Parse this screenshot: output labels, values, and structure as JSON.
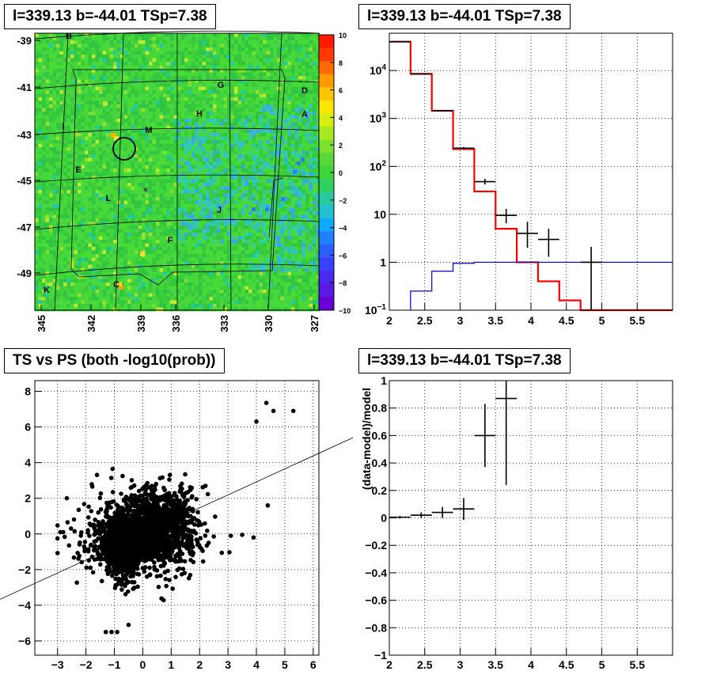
{
  "panels": {
    "skymap": {
      "title": "l=339.13 b=-44.01 TSp=7.38",
      "y_ticks": [
        "-39",
        "-41",
        "-43",
        "-45",
        "-47",
        "-49"
      ],
      "x_ticks": [
        "345",
        "342",
        "339",
        "336",
        "333",
        "330",
        "327"
      ],
      "colorbar_ticks": [
        "10",
        "8",
        "6",
        "4",
        "2",
        "0",
        "−2",
        "−4",
        "−6",
        "−8",
        "−10"
      ],
      "source_labels": [
        {
          "text": "B",
          "x": 87,
          "y": 49
        },
        {
          "text": "G",
          "x": 279,
          "y": 111
        },
        {
          "text": "D",
          "x": 385,
          "y": 118
        },
        {
          "text": "H",
          "x": 252,
          "y": 147
        },
        {
          "text": "A",
          "x": 385,
          "y": 148
        },
        {
          "text": "I",
          "x": 80,
          "y": 163
        },
        {
          "text": "M",
          "x": 188,
          "y": 168
        },
        {
          "text": "E",
          "x": 99,
          "y": 218
        },
        {
          "text": "L",
          "x": 137,
          "y": 254
        },
        {
          "text": "J",
          "x": 277,
          "y": 269
        },
        {
          "text": "F",
          "x": 215,
          "y": 307
        },
        {
          "text": "C",
          "x": 147,
          "y": 363
        },
        {
          "text": "K",
          "x": 59,
          "y": 370
        }
      ]
    },
    "spectrum": {
      "title": "l=339.13 b=-44.01 TSp=7.38",
      "x_ticks": [
        "2",
        "2.5",
        "3",
        "3.5",
        "4",
        "4.5",
        "5",
        "5.5"
      ],
      "y_ticks": [
        "10^-1",
        "1",
        "10",
        "10^2",
        "10^3",
        "10^4"
      ]
    },
    "scatter": {
      "title": "TS vs PS (both -log10(prob))",
      "x_ticks": [
        "−3",
        "−2",
        "−1",
        "0",
        "1",
        "2",
        "3",
        "4",
        "5",
        "6"
      ],
      "y_ticks": [
        "−6",
        "−4",
        "−2",
        "0",
        "2",
        "4",
        "6",
        "8"
      ]
    },
    "residual": {
      "title": "l=339.13 b=-44.01 TSp=7.38",
      "ylabel": "(data-model)/model",
      "x_ticks": [
        "2",
        "2.5",
        "3",
        "3.5",
        "4",
        "4.5",
        "5",
        "5.5"
      ],
      "y_ticks": [
        "−1",
        "−0.8",
        "−0.6",
        "−0.4",
        "−0.2",
        "0",
        "0.2",
        "0.4",
        "0.6",
        "0.8",
        "1"
      ]
    }
  },
  "chart_data": [
    {
      "type": "heatmap",
      "title": "l=339.13 b=-44.01 TSp=7.38",
      "xlabel": "",
      "ylabel": "",
      "xlim": [
        345,
        327
      ],
      "ylim": [
        -50.5,
        -38.8
      ],
      "zlim": [
        -10,
        10
      ],
      "marker_circle": {
        "l": 339.9,
        "b": -43.7
      },
      "colors": {
        "background": "#3ad53a",
        "high": "#ff3a00",
        "low": "#2a7dff"
      }
    },
    {
      "type": "line",
      "title": "l=339.13 b=-44.01 TSp=7.38",
      "xlabel": "",
      "ylabel": "",
      "xlim": [
        2,
        6
      ],
      "ylim": [
        0.1,
        60000
      ],
      "yscale": "log",
      "grid": true,
      "series": [
        {
          "name": "",
          "color": "#ff0000",
          "step": true,
          "edges": [
            2.0,
            2.3,
            2.6,
            2.9,
            3.2,
            3.5,
            3.8,
            4.1,
            4.4,
            4.7,
            5.0,
            6.0
          ],
          "values": [
            40000,
            8500,
            1450,
            230,
            30,
            5,
            1,
            0.4,
            0.16,
            0.1,
            0.1
          ]
        },
        {
          "name": "",
          "color": "#0000cc",
          "step": true,
          "edges": [
            2.3,
            2.6,
            2.9,
            3.2,
            6.0
          ],
          "values": [
            0.25,
            0.65,
            0.95,
            1.0
          ]
        },
        {
          "name": "",
          "color": "#000000",
          "errorbars": true,
          "points": [
            {
              "x": 2.15,
              "y": 40000,
              "xerr": 0.15,
              "ylo": 39000,
              "yhi": 41000
            },
            {
              "x": 2.45,
              "y": 8500,
              "xerr": 0.15,
              "ylo": 8300,
              "yhi": 8700
            },
            {
              "x": 2.75,
              "y": 1450,
              "xerr": 0.15,
              "ylo": 1400,
              "yhi": 1500
            },
            {
              "x": 3.05,
              "y": 240,
              "xerr": 0.15,
              "ylo": 225,
              "yhi": 255
            },
            {
              "x": 3.35,
              "y": 48,
              "xerr": 0.15,
              "ylo": 42,
              "yhi": 55
            },
            {
              "x": 3.65,
              "y": 9.5,
              "xerr": 0.15,
              "ylo": 6.5,
              "yhi": 13
            },
            {
              "x": 3.95,
              "y": 4,
              "xerr": 0.15,
              "ylo": 2,
              "yhi": 7
            },
            {
              "x": 4.25,
              "y": 3,
              "xerr": 0.15,
              "ylo": 1.3,
              "yhi": 5
            },
            {
              "x": 4.85,
              "y": 1,
              "xerr": 0.15,
              "ylo": 0.1,
              "yhi": 2.1
            }
          ]
        }
      ]
    },
    {
      "type": "scatter",
      "title": "TS vs PS (both -log10(prob))",
      "xlabel": "",
      "ylabel": "",
      "xlim": [
        -3.8,
        6.2
      ],
      "ylim": [
        -6.8,
        8.6
      ],
      "grid": true,
      "reference_line": {
        "slope": 0.73,
        "intercept": 0
      },
      "points": [
        [
          4.35,
          7.35
        ],
        [
          4.6,
          6.9
        ],
        [
          5.3,
          6.9
        ],
        [
          4.0,
          6.3
        ],
        [
          4.4,
          1.6
        ],
        [
          3.5,
          -0.05
        ],
        [
          3.9,
          -0.2
        ],
        [
          3.1,
          -0.1
        ],
        [
          2.2,
          -0.1
        ],
        [
          -2.9,
          0.1
        ],
        [
          -2.8,
          0.1
        ],
        [
          -2.4,
          0.15
        ],
        [
          -1.3,
          -5.5
        ],
        [
          -0.9,
          -5.5
        ],
        [
          -1.1,
          -5.5
        ],
        [
          -0.5,
          -5.1
        ]
      ],
      "cloud": {
        "n": 2600,
        "center": [
          0,
          0
        ]
      }
    },
    {
      "type": "scatter",
      "title": "l=339.13 b=-44.01 TSp=7.38",
      "xlabel": "",
      "ylabel": "(data-model)/model",
      "xlim": [
        2,
        6
      ],
      "ylim": [
        -1,
        1
      ],
      "grid": true,
      "points": [
        {
          "x": 2.15,
          "y": 0.005,
          "xerr": 0.15,
          "yerr": 0.01
        },
        {
          "x": 2.45,
          "y": 0.02,
          "xerr": 0.15,
          "yerr": 0.02
        },
        {
          "x": 2.75,
          "y": 0.04,
          "xerr": 0.15,
          "yerr": 0.04
        },
        {
          "x": 3.05,
          "y": 0.065,
          "xerr": 0.15,
          "yerr": 0.08
        },
        {
          "x": 3.35,
          "y": 0.6,
          "xerr": 0.15,
          "yerr": 0.23
        },
        {
          "x": 3.65,
          "y": 0.87,
          "xerr": 0.15,
          "yerr": 0.63
        }
      ]
    }
  ]
}
